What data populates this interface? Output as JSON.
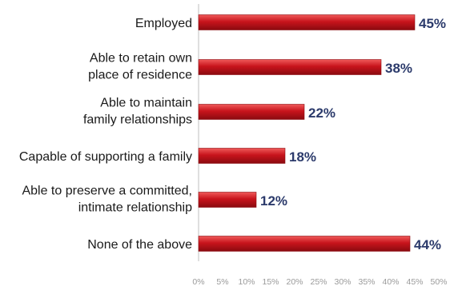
{
  "chart_data": {
    "type": "bar",
    "orientation": "horizontal",
    "title": "",
    "xlabel": "",
    "ylabel": "",
    "categories": [
      [
        "Employed"
      ],
      [
        "Able to retain own",
        "place of residence"
      ],
      [
        "Able to maintain",
        "family relationships"
      ],
      [
        "Capable of supporting a family"
      ],
      [
        "Able to preserve a committed,",
        "intimate relationship"
      ],
      [
        "None of the above"
      ]
    ],
    "values": [
      45,
      38,
      22,
      18,
      12,
      44
    ],
    "value_labels": [
      "45%",
      "38%",
      "22%",
      "18%",
      "12%",
      "44%"
    ],
    "xlim": [
      0,
      50
    ],
    "x_ticks": [
      "0%",
      "5%",
      "10%",
      "15%",
      "20%",
      "25%",
      "30%",
      "35%",
      "40%",
      "45%",
      "50%"
    ],
    "grid": false,
    "legend": "none",
    "colors": {
      "bar": "#c8141c",
      "bar_highlight": "#f05a5a",
      "bar_shadow": "#8a0a10",
      "value_text": "#2b3a6b",
      "tick_text": "#9a9a9a",
      "axis": "#bfbfbf"
    }
  }
}
